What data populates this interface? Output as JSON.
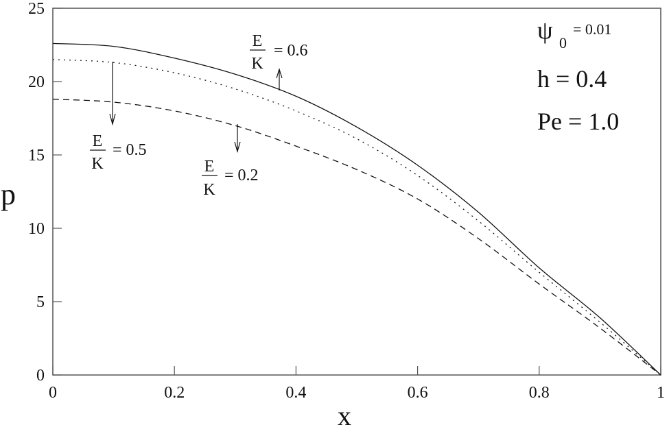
{
  "chart_data": {
    "type": "line",
    "title": "",
    "xlabel": "x",
    "ylabel": "p",
    "xlim": [
      0,
      1
    ],
    "ylim": [
      0,
      25
    ],
    "grid": false,
    "x_ticks": [
      "0",
      "0.2",
      "0.4",
      "0.6",
      "0.8",
      "1"
    ],
    "y_ticks": [
      "0",
      "5",
      "10",
      "15",
      "20",
      "25"
    ],
    "x": [
      0,
      0.1,
      0.2,
      0.3,
      0.4,
      0.5,
      0.6,
      0.7,
      0.8,
      0.9,
      1.0
    ],
    "series": [
      {
        "name": "E/K = 0.6",
        "style": "solid",
        "values": [
          22.6,
          22.4,
          21.6,
          20.5,
          19.0,
          16.9,
          14.3,
          11.1,
          7.3,
          3.9,
          0
        ]
      },
      {
        "name": "E/K = 0.5",
        "style": "dotted",
        "values": [
          21.5,
          21.3,
          20.6,
          19.5,
          18.0,
          16.1,
          13.6,
          10.5,
          7.0,
          3.6,
          0
        ]
      },
      {
        "name": "E/K = 0.2",
        "style": "dashed",
        "values": [
          18.8,
          18.6,
          18.0,
          17.0,
          15.6,
          14.0,
          12.0,
          9.3,
          6.2,
          3.2,
          0
        ]
      }
    ],
    "annotations": [
      {
        "text": "E/K = 0.6",
        "arrow": "up"
      },
      {
        "text": "E/K = 0.5",
        "arrow": "down"
      },
      {
        "text": "E/K = 0.2",
        "arrow": "down"
      },
      {
        "text": "ψ0 = 0.01"
      },
      {
        "text": "h = 0.4"
      },
      {
        "text": "Pe = 1.0"
      }
    ]
  },
  "labels": {
    "xlabel": "x",
    "ylabel": "p",
    "frac_num": "E",
    "frac_den": "K",
    "ann_06": "= 0.6",
    "ann_05": "= 0.5",
    "ann_02": "= 0.2",
    "psi": "ψ",
    "psi_sub": "0",
    "psi_val": "= 0.01",
    "h": "h = 0.4",
    "pe": "Pe = 1.0"
  }
}
